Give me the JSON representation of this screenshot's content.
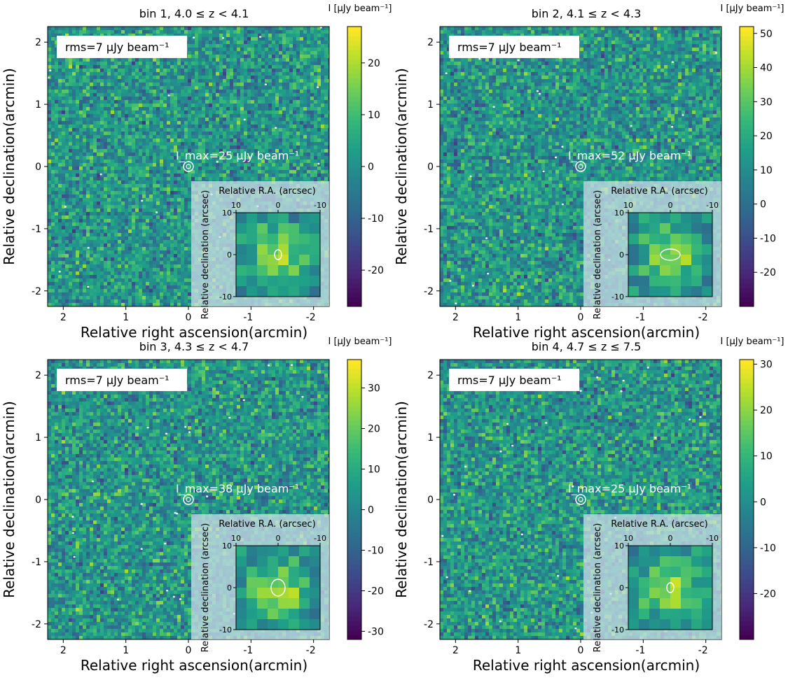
{
  "chart_data": [
    {
      "type": "heatmap",
      "title": "bin 1, 4.0 ≤ z < 4.1",
      "xlabel": "Relative right ascension(arcmin)",
      "ylabel": "Relative declination(arcmin)",
      "xlim": [
        2.25,
        -2.25
      ],
      "ylim": [
        -2.25,
        2.25
      ],
      "x_ticks": [
        2,
        1,
        0,
        -1,
        -2
      ],
      "y_ticks": [
        -2,
        -1,
        0,
        1,
        2
      ],
      "rms_label": "rms=7  μJy beam⁻¹",
      "imax_label": "I_max=25  μJy beam⁻¹",
      "imax_value": 25,
      "colorbar": {
        "label": "I [μJy beam⁻¹]",
        "range": [
          -27,
          27
        ],
        "ticks": [
          -20,
          -10,
          0,
          10,
          20
        ]
      },
      "inset": {
        "xlabel": "Relative R.A. (arcsec)",
        "ylabel": "Relative declination (arcsec)",
        "x_ticks": [
          10,
          0,
          -10
        ],
        "y_ticks": [
          10,
          0,
          -10
        ],
        "range": [
          10,
          -10
        ]
      }
    },
    {
      "type": "heatmap",
      "title": "bin 2, 4.1 ≤ z < 4.3",
      "xlabel": "Relative right ascension(arcmin)",
      "ylabel": "Relative declination(arcmin)",
      "xlim": [
        2.25,
        -2.25
      ],
      "ylim": [
        -2.25,
        2.25
      ],
      "x_ticks": [
        2,
        1,
        0,
        -1,
        -2
      ],
      "y_ticks": [
        -2,
        -1,
        0,
        1,
        2
      ],
      "rms_label": "rms=7  μJy beam⁻¹",
      "imax_label": "I_max=52  μJy beam⁻¹",
      "imax_value": 52,
      "colorbar": {
        "label": "I [μJy beam⁻¹]",
        "range": [
          -30,
          52
        ],
        "ticks": [
          -20,
          -10,
          0,
          10,
          20,
          30,
          40,
          50
        ]
      },
      "inset": {
        "xlabel": "Relative R.A. (arcsec)",
        "ylabel": "Relative declination (arcsec)",
        "x_ticks": [
          10,
          0,
          -10
        ],
        "y_ticks": [
          10,
          0,
          -10
        ],
        "range": [
          10,
          -10
        ]
      }
    },
    {
      "type": "heatmap",
      "title": "bin 3, 4.3 ≤ z < 4.7",
      "xlabel": "Relative right ascension(arcmin)",
      "ylabel": "Relative declination(arcmin)",
      "xlim": [
        2.25,
        -2.25
      ],
      "ylim": [
        -2.25,
        2.25
      ],
      "x_ticks": [
        2,
        1,
        0,
        -1,
        -2
      ],
      "y_ticks": [
        -2,
        -1,
        0,
        1,
        2
      ],
      "rms_label": "rms=7  μJy beam⁻¹",
      "imax_label": "I_max=38  μJy beam⁻¹",
      "imax_value": 38,
      "colorbar": {
        "label": "I [μJy beam⁻¹]",
        "range": [
          -32,
          37
        ],
        "ticks": [
          -30,
          -20,
          -10,
          0,
          10,
          20,
          30
        ]
      },
      "inset": {
        "xlabel": "Relative R.A. (arcsec)",
        "ylabel": "Relative declination (arcsec)",
        "x_ticks": [
          10,
          0,
          -10
        ],
        "y_ticks": [
          10,
          0,
          -10
        ],
        "range": [
          10,
          -10
        ]
      }
    },
    {
      "type": "heatmap",
      "title": "bin 4, 4.7 ≤ z ≤ 7.5",
      "xlabel": "Relative right ascension(arcmin)",
      "ylabel": "Relative declination(arcmin)",
      "xlim": [
        2.25,
        -2.25
      ],
      "ylim": [
        -2.25,
        2.25
      ],
      "x_ticks": [
        2,
        1,
        0,
        -1,
        -2
      ],
      "y_ticks": [
        -2,
        -1,
        0,
        1,
        2
      ],
      "rms_label": "rms=7  μJy beam⁻¹",
      "imax_label": "I_max=25  μJy beam⁻¹",
      "imax_value": 25,
      "colorbar": {
        "label": "I [μJy beam⁻¹]",
        "range": [
          -30,
          31
        ],
        "ticks": [
          -20,
          -10,
          0,
          10,
          20,
          30
        ]
      },
      "inset": {
        "xlabel": "Relative R.A. (arcsec)",
        "ylabel": "Relative declination (arcsec)",
        "x_ticks": [
          10,
          0,
          -10
        ],
        "y_ticks": [
          10,
          0,
          -10
        ],
        "range": [
          10,
          -10
        ]
      }
    }
  ],
  "colormap": [
    "#440154",
    "#482878",
    "#3e4a89",
    "#31688e",
    "#26828e",
    "#1f9e89",
    "#35b779",
    "#6ece58",
    "#b5de2b",
    "#fde725"
  ]
}
